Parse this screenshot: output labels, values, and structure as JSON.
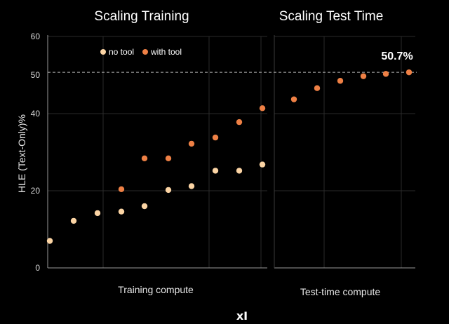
{
  "brand": "xI",
  "callout": "50.7%",
  "legend": [
    "no tool",
    "with tool"
  ],
  "colors": {
    "no_tool": "#fbd4a4",
    "with_tool": "#ee8045",
    "reference_line": "#bbbbbb",
    "grid": "#2a2a2a"
  },
  "chart_data": [
    {
      "type": "scatter",
      "title": "Scaling Training",
      "xlabel": "Training compute",
      "ylabel": "HLE (Text-Only)%",
      "ylim": [
        0,
        60
      ],
      "yticks": [
        0,
        20,
        40,
        50,
        60
      ],
      "reference_line": 50.7,
      "grid": true,
      "legend_position": "top-center",
      "x": [
        1,
        2,
        3,
        4,
        5,
        6,
        7,
        8,
        9,
        10
      ],
      "series": [
        {
          "name": "no tool",
          "values": [
            7,
            12.2,
            14.2,
            14.6,
            16,
            20.2,
            21.2,
            25.2,
            25.2,
            26.8
          ]
        },
        {
          "name": "with tool",
          "values": [
            null,
            null,
            null,
            20.4,
            28.4,
            28.4,
            32.2,
            33.8,
            37.8,
            41.4
          ]
        }
      ]
    },
    {
      "type": "scatter",
      "title": "Scaling Test Time",
      "xlabel": "Test-time compute",
      "ylabel": "",
      "ylim": [
        0,
        60
      ],
      "grid": true,
      "x": [
        1,
        2,
        3,
        4,
        5,
        6
      ],
      "series": [
        {
          "name": "with tool",
          "values": [
            43.7,
            46.6,
            48.5,
            49.7,
            50.3,
            50.7
          ]
        }
      ]
    }
  ]
}
